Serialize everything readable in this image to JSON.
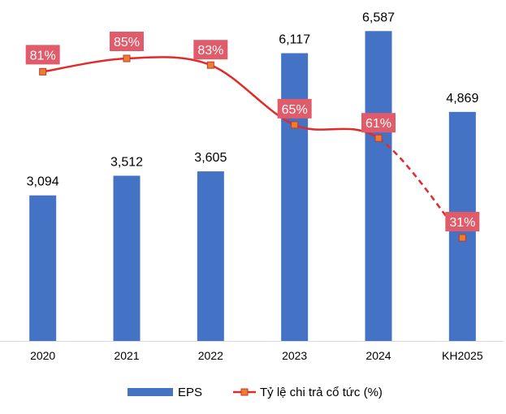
{
  "chart_data": {
    "type": "bar",
    "title": "",
    "xlabel": "",
    "ylabel": "",
    "categories": [
      "2020",
      "2021",
      "2022",
      "2023",
      "2024",
      "KH2025"
    ],
    "series": [
      {
        "name": "EPS",
        "type": "bar",
        "axis": "left",
        "color": "#4472C4",
        "values": [
          3094,
          3512,
          3605,
          6117,
          6587,
          4869
        ],
        "labels": [
          "3,094",
          "3,512",
          "3,605",
          "6,117",
          "6,587",
          "4,869"
        ]
      },
      {
        "name": "Tỷ lệ chi trả cổ tức (%)",
        "type": "line",
        "axis": "right",
        "color": "#E02B2B",
        "marker_color": "#ED7D31",
        "label_bg": "#E05C6A",
        "values": [
          81,
          85,
          83,
          65,
          61,
          31
        ],
        "labels": [
          "81%",
          "85%",
          "83%",
          "65%",
          "61%",
          "31%"
        ],
        "dashed_from_index": 4
      }
    ],
    "ylim_left": [
      0,
      7000
    ],
    "ylim_right": [
      -20,
      100
    ],
    "grid": false,
    "legend": "bottom"
  }
}
